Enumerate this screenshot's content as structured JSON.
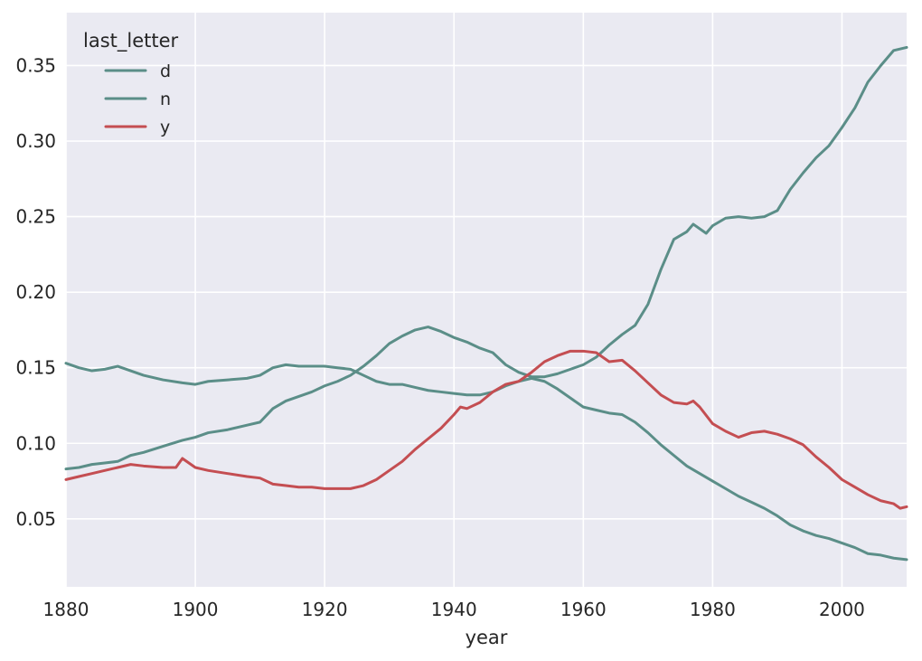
{
  "colors": {
    "background": "#ffffff",
    "plot_background": "#eaeaf2",
    "grid": "#ffffff",
    "text": "#262626"
  },
  "chart_data": {
    "type": "line",
    "title": "",
    "xlabel": "year",
    "ylabel": "",
    "xlim": [
      1880,
      2010
    ],
    "ylim": [
      0.005,
      0.385
    ],
    "xticks": [
      1880,
      1900,
      1920,
      1940,
      1960,
      1980,
      2000
    ],
    "yticks": [
      0.05,
      0.1,
      0.15,
      0.2,
      0.25,
      0.3,
      0.35
    ],
    "xtick_labels": [
      "1880",
      "1900",
      "1920",
      "1940",
      "1960",
      "1980",
      "2000"
    ],
    "ytick_labels": [
      "0.05",
      "0.10",
      "0.15",
      "0.20",
      "0.25",
      "0.30",
      "0.35"
    ],
    "grid": true,
    "legend": {
      "title": "last_letter",
      "placement": "top-left"
    },
    "series": [
      {
        "name": "d",
        "color": "#5b8e88",
        "points": [
          [
            1880,
            0.153
          ],
          [
            1882,
            0.15
          ],
          [
            1884,
            0.148
          ],
          [
            1886,
            0.149
          ],
          [
            1888,
            0.151
          ],
          [
            1890,
            0.148
          ],
          [
            1892,
            0.145
          ],
          [
            1895,
            0.142
          ],
          [
            1898,
            0.14
          ],
          [
            1900,
            0.139
          ],
          [
            1902,
            0.141
          ],
          [
            1905,
            0.142
          ],
          [
            1908,
            0.143
          ],
          [
            1910,
            0.145
          ],
          [
            1912,
            0.15
          ],
          [
            1914,
            0.152
          ],
          [
            1916,
            0.151
          ],
          [
            1918,
            0.151
          ],
          [
            1920,
            0.151
          ],
          [
            1922,
            0.15
          ],
          [
            1924,
            0.149
          ],
          [
            1926,
            0.145
          ],
          [
            1928,
            0.141
          ],
          [
            1930,
            0.139
          ],
          [
            1932,
            0.139
          ],
          [
            1934,
            0.137
          ],
          [
            1936,
            0.135
          ],
          [
            1938,
            0.134
          ],
          [
            1940,
            0.133
          ],
          [
            1942,
            0.132
          ],
          [
            1944,
            0.132
          ],
          [
            1946,
            0.134
          ],
          [
            1948,
            0.138
          ],
          [
            1950,
            0.141
          ],
          [
            1952,
            0.143
          ],
          [
            1954,
            0.141
          ],
          [
            1956,
            0.136
          ],
          [
            1958,
            0.13
          ],
          [
            1960,
            0.124
          ],
          [
            1962,
            0.122
          ],
          [
            1964,
            0.12
          ],
          [
            1966,
            0.119
          ],
          [
            1968,
            0.114
          ],
          [
            1970,
            0.107
          ],
          [
            1972,
            0.099
          ],
          [
            1974,
            0.092
          ],
          [
            1976,
            0.085
          ],
          [
            1978,
            0.08
          ],
          [
            1980,
            0.075
          ],
          [
            1982,
            0.07
          ],
          [
            1984,
            0.065
          ],
          [
            1986,
            0.061
          ],
          [
            1988,
            0.057
          ],
          [
            1990,
            0.052
          ],
          [
            1992,
            0.046
          ],
          [
            1994,
            0.042
          ],
          [
            1996,
            0.039
          ],
          [
            1998,
            0.037
          ],
          [
            2000,
            0.034
          ],
          [
            2002,
            0.031
          ],
          [
            2004,
            0.027
          ],
          [
            2006,
            0.026
          ],
          [
            2008,
            0.024
          ],
          [
            2010,
            0.023
          ]
        ]
      },
      {
        "name": "n",
        "color": "#5b8e88",
        "points": [
          [
            1880,
            0.083
          ],
          [
            1882,
            0.084
          ],
          [
            1884,
            0.086
          ],
          [
            1886,
            0.087
          ],
          [
            1888,
            0.088
          ],
          [
            1890,
            0.092
          ],
          [
            1892,
            0.094
          ],
          [
            1895,
            0.098
          ],
          [
            1898,
            0.102
          ],
          [
            1900,
            0.104
          ],
          [
            1902,
            0.107
          ],
          [
            1905,
            0.109
          ],
          [
            1908,
            0.112
          ],
          [
            1910,
            0.114
          ],
          [
            1912,
            0.123
          ],
          [
            1914,
            0.128
          ],
          [
            1916,
            0.131
          ],
          [
            1918,
            0.134
          ],
          [
            1920,
            0.138
          ],
          [
            1922,
            0.141
          ],
          [
            1924,
            0.145
          ],
          [
            1926,
            0.151
          ],
          [
            1928,
            0.158
          ],
          [
            1930,
            0.166
          ],
          [
            1932,
            0.171
          ],
          [
            1934,
            0.175
          ],
          [
            1936,
            0.177
          ],
          [
            1938,
            0.174
          ],
          [
            1940,
            0.17
          ],
          [
            1942,
            0.167
          ],
          [
            1944,
            0.163
          ],
          [
            1946,
            0.16
          ],
          [
            1948,
            0.152
          ],
          [
            1950,
            0.147
          ],
          [
            1952,
            0.144
          ],
          [
            1954,
            0.144
          ],
          [
            1956,
            0.146
          ],
          [
            1958,
            0.149
          ],
          [
            1960,
            0.152
          ],
          [
            1962,
            0.157
          ],
          [
            1964,
            0.165
          ],
          [
            1966,
            0.172
          ],
          [
            1968,
            0.178
          ],
          [
            1970,
            0.192
          ],
          [
            1972,
            0.215
          ],
          [
            1974,
            0.235
          ],
          [
            1976,
            0.24
          ],
          [
            1977,
            0.245
          ],
          [
            1979,
            0.239
          ],
          [
            1980,
            0.244
          ],
          [
            1982,
            0.249
          ],
          [
            1984,
            0.25
          ],
          [
            1986,
            0.249
          ],
          [
            1988,
            0.25
          ],
          [
            1990,
            0.254
          ],
          [
            1992,
            0.268
          ],
          [
            1994,
            0.279
          ],
          [
            1996,
            0.289
          ],
          [
            1998,
            0.297
          ],
          [
            2000,
            0.309
          ],
          [
            2002,
            0.322
          ],
          [
            2004,
            0.339
          ],
          [
            2006,
            0.35
          ],
          [
            2008,
            0.36
          ],
          [
            2010,
            0.362
          ]
        ]
      },
      {
        "name": "y",
        "color": "#c44e52",
        "points": [
          [
            1880,
            0.076
          ],
          [
            1882,
            0.078
          ],
          [
            1884,
            0.08
          ],
          [
            1886,
            0.082
          ],
          [
            1888,
            0.084
          ],
          [
            1890,
            0.086
          ],
          [
            1892,
            0.085
          ],
          [
            1895,
            0.084
          ],
          [
            1897,
            0.084
          ],
          [
            1898,
            0.09
          ],
          [
            1900,
            0.084
          ],
          [
            1902,
            0.082
          ],
          [
            1905,
            0.08
          ],
          [
            1908,
            0.078
          ],
          [
            1910,
            0.077
          ],
          [
            1912,
            0.073
          ],
          [
            1914,
            0.072
          ],
          [
            1916,
            0.071
          ],
          [
            1918,
            0.071
          ],
          [
            1920,
            0.07
          ],
          [
            1922,
            0.07
          ],
          [
            1924,
            0.07
          ],
          [
            1926,
            0.072
          ],
          [
            1928,
            0.076
          ],
          [
            1930,
            0.082
          ],
          [
            1932,
            0.088
          ],
          [
            1934,
            0.096
          ],
          [
            1936,
            0.103
          ],
          [
            1938,
            0.11
          ],
          [
            1940,
            0.119
          ],
          [
            1941,
            0.124
          ],
          [
            1942,
            0.123
          ],
          [
            1944,
            0.127
          ],
          [
            1946,
            0.134
          ],
          [
            1948,
            0.139
          ],
          [
            1950,
            0.141
          ],
          [
            1952,
            0.147
          ],
          [
            1954,
            0.154
          ],
          [
            1956,
            0.158
          ],
          [
            1958,
            0.161
          ],
          [
            1960,
            0.161
          ],
          [
            1962,
            0.16
          ],
          [
            1964,
            0.154
          ],
          [
            1966,
            0.155
          ],
          [
            1968,
            0.148
          ],
          [
            1970,
            0.14
          ],
          [
            1972,
            0.132
          ],
          [
            1974,
            0.127
          ],
          [
            1976,
            0.126
          ],
          [
            1977,
            0.128
          ],
          [
            1978,
            0.124
          ],
          [
            1980,
            0.113
          ],
          [
            1982,
            0.108
          ],
          [
            1984,
            0.104
          ],
          [
            1986,
            0.107
          ],
          [
            1988,
            0.108
          ],
          [
            1990,
            0.106
          ],
          [
            1992,
            0.103
          ],
          [
            1994,
            0.099
          ],
          [
            1996,
            0.091
          ],
          [
            1998,
            0.084
          ],
          [
            2000,
            0.076
          ],
          [
            2002,
            0.071
          ],
          [
            2004,
            0.066
          ],
          [
            2006,
            0.062
          ],
          [
            2008,
            0.06
          ],
          [
            2009,
            0.057
          ],
          [
            2010,
            0.058
          ]
        ]
      }
    ]
  }
}
